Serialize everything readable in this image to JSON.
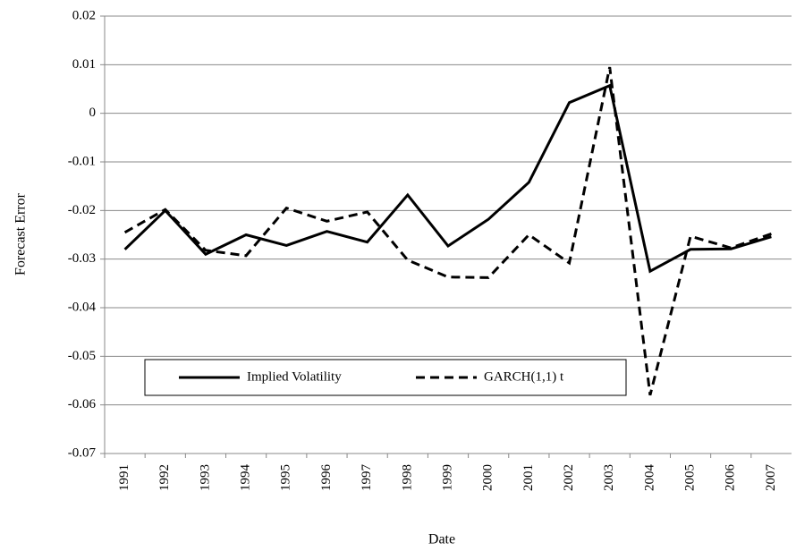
{
  "chart_data": {
    "type": "line",
    "x_label": "Date",
    "y_label": "Forecast Error",
    "categories": [
      "1991",
      "1992",
      "1993",
      "1994",
      "1995",
      "1996",
      "1997",
      "1998",
      "1999",
      "2000",
      "2001",
      "2002",
      "2003",
      "2004",
      "2005",
      "2006",
      "2007"
    ],
    "series": [
      {
        "name": "Implied Volatility",
        "color": "#000000",
        "line_style": "solid",
        "values": [
          -0.028,
          -0.02,
          -0.029,
          -0.025,
          -0.0272,
          -0.0243,
          -0.0265,
          -0.0168,
          -0.0273,
          -0.0218,
          -0.0142,
          0.0022,
          0.0057,
          -0.0325,
          -0.028,
          -0.0279,
          -0.0254
        ]
      },
      {
        "name": "GARCH(1,1) t",
        "color": "#000000",
        "line_style": "dashed",
        "values": [
          -0.0245,
          -0.0198,
          -0.0282,
          -0.0293,
          -0.0195,
          -0.0222,
          -0.0203,
          -0.0302,
          -0.0337,
          -0.0338,
          -0.025,
          -0.0308,
          0.0095,
          -0.058,
          -0.0253,
          -0.0277,
          -0.0248
        ]
      }
    ],
    "ylim": [
      -0.07,
      0.02
    ],
    "yticks": [
      0.02,
      0.01,
      0,
      -0.01,
      -0.02,
      -0.03,
      -0.04,
      -0.05,
      -0.06,
      -0.07
    ],
    "grid": true
  }
}
